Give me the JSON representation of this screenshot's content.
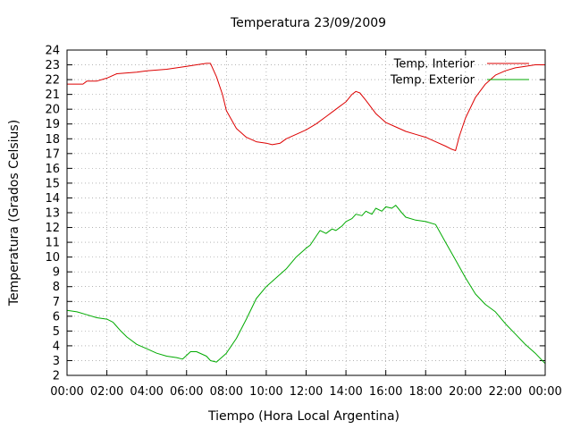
{
  "chart_data": {
    "type": "line",
    "title": "Temperatura 23/09/2009",
    "xlabel": "Tiempo (Hora Local Argentina)",
    "ylabel": "Temperatura (Grados Celsius)",
    "xlim": [
      0,
      24
    ],
    "ylim": [
      2,
      24
    ],
    "x_ticks": [
      "00:00",
      "02:00",
      "04:00",
      "06:00",
      "08:00",
      "10:00",
      "12:00",
      "14:00",
      "16:00",
      "18:00",
      "20:00",
      "22:00",
      "00:00"
    ],
    "y_ticks": [
      2,
      3,
      4,
      5,
      6,
      7,
      8,
      9,
      10,
      11,
      12,
      13,
      14,
      15,
      16,
      17,
      18,
      19,
      20,
      21,
      22,
      23,
      24
    ],
    "grid": true,
    "legend_position": "top-right",
    "x_unit": "hours",
    "series": [
      {
        "name": "Temp. Interior",
        "color": "#dd0000",
        "x": [
          0,
          0.8,
          1.0,
          1.5,
          2.0,
          2.5,
          3.5,
          4.0,
          5.0,
          6.0,
          6.5,
          7.0,
          7.2,
          7.5,
          7.8,
          8.0,
          8.5,
          9.0,
          9.5,
          10.0,
          10.3,
          10.7,
          11.0,
          11.5,
          12.0,
          12.5,
          13.0,
          13.5,
          14.0,
          14.3,
          14.5,
          14.7,
          15.0,
          15.5,
          16.0,
          16.5,
          17.0,
          17.5,
          18.0,
          18.5,
          19.0,
          19.3,
          19.5,
          19.7,
          20.0,
          20.5,
          21.0,
          21.5,
          22.0,
          22.5,
          23.0,
          23.5,
          24.0
        ],
        "y": [
          21.7,
          21.7,
          21.9,
          21.9,
          22.1,
          22.4,
          22.5,
          22.6,
          22.7,
          22.9,
          23.0,
          23.1,
          23.1,
          22.2,
          21.0,
          19.9,
          18.7,
          18.1,
          17.8,
          17.7,
          17.6,
          17.7,
          18.0,
          18.3,
          18.6,
          19.0,
          19.5,
          20.0,
          20.5,
          21.0,
          21.2,
          21.1,
          20.6,
          19.7,
          19.1,
          18.8,
          18.5,
          18.3,
          18.1,
          17.8,
          17.5,
          17.3,
          17.2,
          18.2,
          19.4,
          20.8,
          21.7,
          22.3,
          22.6,
          22.8,
          22.9,
          23.0,
          23.0
        ]
      },
      {
        "name": "Temp. Exterior",
        "color": "#00aa00",
        "x": [
          0,
          0.5,
          1.0,
          1.5,
          2.0,
          2.3,
          2.7,
          3.0,
          3.5,
          4.0,
          4.5,
          5.0,
          5.5,
          5.8,
          6.2,
          6.5,
          7.0,
          7.2,
          7.5,
          8.0,
          8.5,
          9.0,
          9.5,
          10.0,
          10.5,
          11.0,
          11.5,
          12.0,
          12.2,
          12.5,
          12.7,
          13.0,
          13.3,
          13.5,
          13.8,
          14.0,
          14.3,
          14.5,
          14.8,
          15.0,
          15.3,
          15.5,
          15.8,
          16.0,
          16.3,
          16.5,
          16.8,
          17.0,
          17.5,
          18.0,
          18.5,
          19.0,
          19.5,
          20.0,
          20.5,
          21.0,
          21.5,
          22.0,
          22.5,
          23.0,
          23.5,
          24.0
        ],
        "y": [
          6.4,
          6.3,
          6.1,
          5.9,
          5.8,
          5.6,
          5.0,
          4.6,
          4.1,
          3.8,
          3.5,
          3.3,
          3.2,
          3.1,
          3.6,
          3.6,
          3.3,
          3.0,
          2.9,
          3.5,
          4.5,
          5.8,
          7.2,
          8.0,
          8.6,
          9.2,
          10.0,
          10.6,
          10.8,
          11.4,
          11.8,
          11.6,
          11.9,
          11.8,
          12.1,
          12.4,
          12.6,
          12.9,
          12.8,
          13.1,
          12.9,
          13.3,
          13.1,
          13.4,
          13.3,
          13.5,
          13.0,
          12.7,
          12.5,
          12.4,
          12.2,
          11.0,
          9.8,
          8.6,
          7.5,
          6.8,
          6.3,
          5.5,
          4.8,
          4.1,
          3.5,
          2.8
        ]
      }
    ]
  }
}
